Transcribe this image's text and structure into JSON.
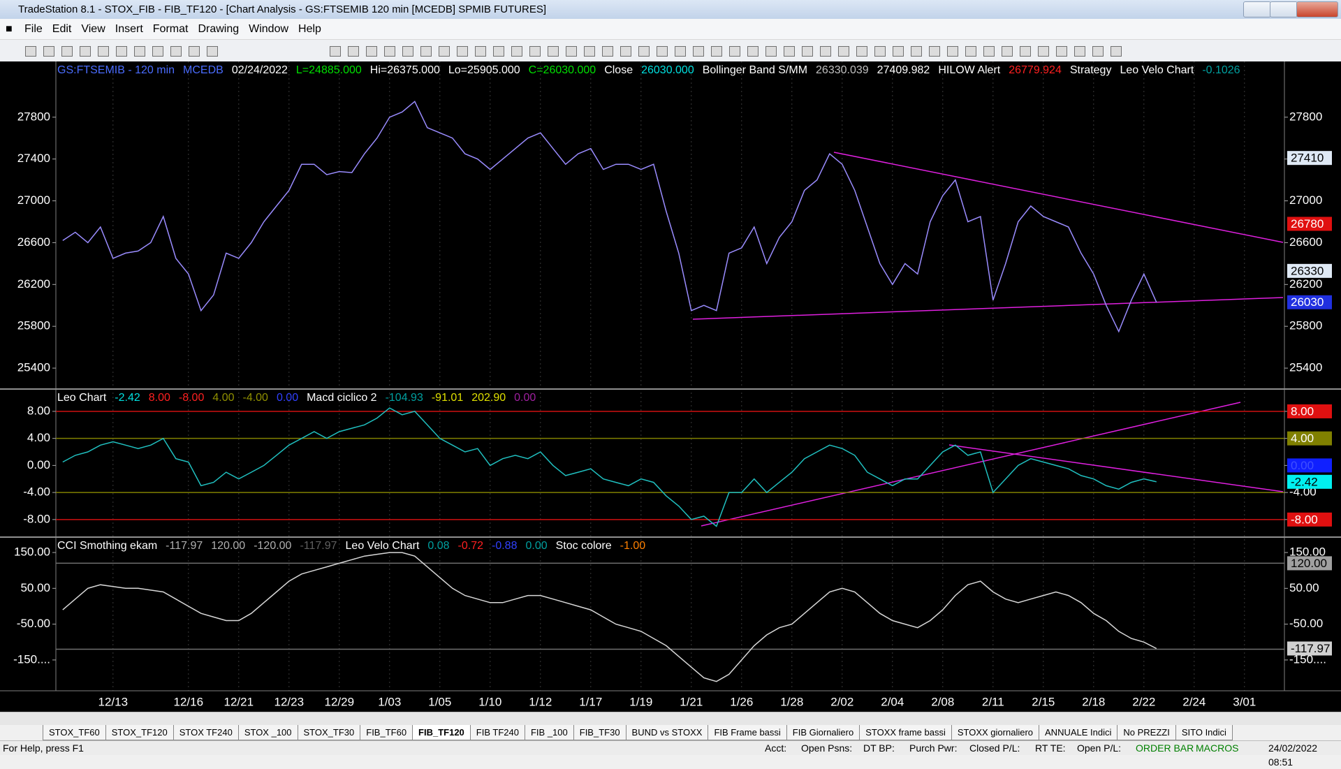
{
  "window": {
    "title": "TradeStation 8.1 - STOX_FIB - FIB_TF120 - [Chart Analysis - GS:FTSEMIB  120 min  [MCEDB] SPMIB FUTURES]",
    "menu": [
      "File",
      "Edit",
      "View",
      "Insert",
      "Format",
      "Drawing",
      "Window",
      "Help"
    ]
  },
  "tabs": [
    "STOX_TF60",
    "STOX_TF120",
    "STOX TF240",
    "STOX _100",
    "STOX_TF30",
    "FIB_TF60",
    "FIB_TF120",
    "FIB TF240",
    "FIB _100",
    "FIB_TF30",
    "BUND vs STOXX",
    "FIB Frame bassi",
    "FIB Giornaliero",
    "STOXX frame bassi",
    "STOXX giornaliero",
    "ANNUALE Indici",
    "No PREZZI",
    "SITO Indici"
  ],
  "active_tab": "FIB_TF120",
  "status": {
    "help": "For Help, press F1",
    "fields": [
      "Acct:",
      "Open Psns:",
      "DT BP:",
      "Purch Pwr:",
      "Closed P/L:",
      "RT TE:",
      "Open P/L:"
    ],
    "order_bar": "ORDER BAR",
    "macros": "MACROS",
    "datetime": "24/02/2022 08:51"
  },
  "chart_data": [
    {
      "type": "line",
      "legend": [
        {
          "text": "GS:FTSEMIB - 120 min",
          "color": "#4a6cff"
        },
        {
          "text": "MCEDB",
          "color": "#4a6cff"
        },
        {
          "text": "02/24/2022",
          "color": "#ffffff"
        },
        {
          "text": "L=24885.000",
          "color": "#00e000"
        },
        {
          "text": "Hi=26375.000",
          "color": "#ffffff"
        },
        {
          "text": "Lo=25905.000",
          "color": "#ffffff"
        },
        {
          "text": "C=26030.000",
          "color": "#00e000"
        },
        {
          "text": "Close",
          "color": "#ffffff"
        },
        {
          "text": "26030.000",
          "color": "#00e0e0"
        },
        {
          "text": "Bollinger Band S/MM",
          "color": "#ffffff"
        },
        {
          "text": "26330.039",
          "color": "#c0c0c0"
        },
        {
          "text": "27409.982",
          "color": "#ffffff"
        },
        {
          "text": "HILOW Alert",
          "color": "#ffffff"
        },
        {
          "text": "26779.924",
          "color": "#ff2020"
        },
        {
          "text": "Strategy",
          "color": "#ffffff"
        },
        {
          "text": "Leo Velo Chart",
          "color": "#ffffff"
        },
        {
          "text": "-0.1026",
          "color": "#00a0a0"
        }
      ],
      "categories": [
        null,
        null,
        null,
        null,
        "12/13",
        null,
        null,
        null,
        null,
        null,
        "12/16",
        null,
        null,
        null,
        "12/21",
        null,
        null,
        null,
        "12/23",
        null,
        null,
        null,
        "12/29",
        null,
        null,
        null,
        "1/03",
        null,
        null,
        null,
        "1/05",
        null,
        null,
        null,
        "1/10",
        null,
        null,
        null,
        "1/12",
        null,
        null,
        null,
        "1/17",
        null,
        null,
        null,
        "1/19",
        null,
        null,
        null,
        "1/21",
        null,
        null,
        null,
        "1/26",
        null,
        null,
        null,
        "1/28",
        null,
        null,
        null,
        "2/02",
        null,
        null,
        null,
        "2/04",
        null,
        null,
        null,
        "2/08",
        null,
        null,
        null,
        "2/11",
        null,
        null,
        null,
        "2/15",
        null,
        null,
        null,
        "2/18",
        null,
        null,
        null,
        "2/22",
        null,
        null,
        null,
        "2/24",
        null,
        null,
        null,
        "3/01",
        null,
        null,
        null
      ],
      "ylim": [
        25200,
        28333
      ],
      "yticks": [
        27800,
        27400,
        27000,
        26600,
        26200,
        25800,
        25400
      ],
      "series": [
        {
          "color": "#9a8cff",
          "values": [
            26620,
            26700,
            26600,
            26750,
            26450,
            26500,
            26520,
            26600,
            26850,
            26450,
            26300,
            25950,
            26100,
            26500,
            26450,
            26600,
            26800,
            26950,
            27100,
            27350,
            27350,
            27250,
            27280,
            27270,
            27450,
            27600,
            27800,
            27850,
            27950,
            27700,
            27650,
            27600,
            27450,
            27400,
            27300,
            27400,
            27500,
            27600,
            27650,
            27500,
            27350,
            27450,
            27500,
            27300,
            27350,
            27350,
            27300,
            27350,
            26900,
            26500,
            25950,
            26000,
            25950,
            26500,
            26550,
            26750,
            26400,
            26650,
            26800,
            27100,
            27200,
            27450,
            27350,
            27100,
            26750,
            26400,
            26200,
            26400,
            26300,
            26800,
            27050,
            27200,
            26800,
            26850,
            26050,
            26400,
            26800,
            26950,
            26850,
            26800,
            26750,
            26500,
            26300,
            26000,
            25750,
            26050,
            26300,
            26030,
            null,
            null,
            null,
            null,
            null,
            null,
            null,
            null,
            null,
            null
          ]
        }
      ],
      "value_boxes": [
        {
          "value": 27410,
          "color": "#dfe9f5",
          "text_color": "#000000"
        },
        {
          "value": 26780,
          "color": "#e01010",
          "text_color": "#ffffff"
        },
        {
          "value": 26330,
          "color": "#dfe9f5",
          "text_color": "#000000"
        },
        {
          "value": 26030,
          "color": "#2030e0",
          "text_color": "#ffffff"
        }
      ]
    },
    {
      "type": "line",
      "legend": [
        {
          "text": "Leo Chart",
          "color": "#ffffff"
        },
        {
          "text": "-2.42",
          "color": "#00e0e0"
        },
        {
          "text": "8.00",
          "color": "#ff2020"
        },
        {
          "text": "-8.00",
          "color": "#ff2020"
        },
        {
          "text": "4.00",
          "color": "#909000"
        },
        {
          "text": "-4.00",
          "color": "#909000"
        },
        {
          "text": "0.00",
          "color": "#3040ff"
        },
        {
          "text": "Macd ciclico 2",
          "color": "#ffffff"
        },
        {
          "text": "-104.93",
          "color": "#00a0a0"
        },
        {
          "text": "-91.01",
          "color": "#e0e000"
        },
        {
          "text": "202.90",
          "color": "#e0e000"
        },
        {
          "text": "0.00",
          "color": "#a020a0"
        }
      ],
      "ylim": [
        -10.6,
        11.3
      ],
      "yticks": [
        {
          "value": 8,
          "label": "8.00"
        },
        {
          "value": 4,
          "label": "4.00"
        },
        {
          "value": 0,
          "label": "0.00"
        },
        {
          "value": -4,
          "label": "-4.00"
        },
        {
          "value": -8,
          "label": "-8.00"
        }
      ],
      "reference_lines": [
        {
          "value": 8,
          "color": "#d01010"
        },
        {
          "value": 4,
          "color": "#808000"
        },
        {
          "value": -4,
          "color": "#808000"
        },
        {
          "value": -8,
          "color": "#d01010"
        }
      ],
      "series": [
        {
          "color": "#20c0c0",
          "values": [
            0.5,
            1.5,
            2,
            3,
            3.5,
            3,
            2.5,
            3,
            4,
            1,
            0.5,
            -3,
            -2.5,
            -1,
            -2,
            -1,
            0,
            1.5,
            3,
            4,
            5,
            4,
            5,
            5.5,
            6,
            7,
            8.5,
            7.5,
            8,
            6,
            4,
            3,
            2,
            2.5,
            0,
            1,
            1.5,
            1,
            2,
            0,
            -1.5,
            -1,
            -0.5,
            -2,
            -2.5,
            -3,
            -2,
            -2.5,
            -4.5,
            -6,
            -8,
            -7.5,
            -9,
            -4,
            -4,
            -2,
            -4,
            -2.5,
            -1,
            1,
            2,
            3,
            2.5,
            1.5,
            -1,
            -2,
            -3,
            -2,
            -2,
            0,
            2,
            3,
            1.5,
            2,
            -4,
            -2,
            0,
            1,
            0.5,
            0,
            -0.5,
            -1.5,
            -2,
            -3,
            -3.5,
            -2.5,
            -2,
            -2.42,
            null,
            null,
            null,
            null,
            null,
            null,
            null,
            null,
            null,
            null
          ]
        }
      ],
      "value_boxes": [
        {
          "value": 8,
          "label": "8.00",
          "color": "#e01010",
          "text_color": "#ffffff"
        },
        {
          "value": 4,
          "label": "4.00",
          "color": "#808000",
          "text_color": "#ffffff"
        },
        {
          "value": 0,
          "label": "0.00",
          "color": "#1020ff",
          "text_color": "#4050ff"
        },
        {
          "value": -2.42,
          "label": "-2.42",
          "color": "#00f0f0",
          "text_color": "#000000"
        },
        {
          "value": -8,
          "label": "-8.00",
          "color": "#e01010",
          "text_color": "#ffffff"
        }
      ]
    },
    {
      "type": "line",
      "legend": [
        {
          "text": "CCI Smothing ekam",
          "color": "#ffffff"
        },
        {
          "text": "-117.97",
          "color": "#b0b0b0"
        },
        {
          "text": "120.00",
          "color": "#b0b0b0"
        },
        {
          "text": "-120.00",
          "color": "#b0b0b0"
        },
        {
          "text": "-117.97",
          "color": "#606060"
        },
        {
          "text": "Leo Velo Chart",
          "color": "#ffffff"
        },
        {
          "text": "0.08",
          "color": "#00a0a0"
        },
        {
          "text": "-0.72",
          "color": "#ff2020"
        },
        {
          "text": "-0.88",
          "color": "#3040ff"
        },
        {
          "text": "0.00",
          "color": "#00a0a0"
        },
        {
          "text": "Stoc colore",
          "color": "#ffffff"
        },
        {
          "text": "-1.00",
          "color": "#ff8000"
        }
      ],
      "ylim": [
        -236,
        193
      ],
      "yticks": [
        {
          "value": 150,
          "label": "150.00"
        },
        {
          "value": 50,
          "label": "50.00"
        },
        {
          "value": -50,
          "label": "-50.00"
        },
        {
          "value": -150,
          "label": "-150...."
        }
      ],
      "reference_lines": [
        {
          "value": 120,
          "color": "#707070"
        },
        {
          "value": -120,
          "color": "#707070"
        }
      ],
      "series": [
        {
          "color": "#d8d8d8",
          "values": [
            -10,
            20,
            50,
            60,
            55,
            50,
            50,
            45,
            40,
            20,
            0,
            -20,
            -30,
            -40,
            -40,
            -20,
            10,
            40,
            70,
            90,
            100,
            110,
            120,
            130,
            140,
            145,
            150,
            150,
            140,
            110,
            80,
            50,
            30,
            20,
            10,
            10,
            20,
            30,
            30,
            20,
            10,
            0,
            -10,
            -30,
            -50,
            -60,
            -70,
            -90,
            -110,
            -140,
            -170,
            -200,
            -210,
            -190,
            -150,
            -110,
            -80,
            -60,
            -50,
            -20,
            10,
            40,
            50,
            40,
            10,
            -20,
            -40,
            -50,
            -60,
            -40,
            -10,
            30,
            60,
            70,
            40,
            20,
            10,
            20,
            30,
            40,
            30,
            10,
            -20,
            -40,
            -70,
            -90,
            -100,
            -117.97,
            null,
            null,
            null,
            null,
            null,
            null,
            null,
            null,
            null,
            null
          ]
        }
      ],
      "value_boxes": [
        {
          "value": 120,
          "label": "120.00",
          "color": "#a0a0a0",
          "text_color": "#000000"
        },
        {
          "value": -117.97,
          "label": "-117.97",
          "color": "#d0d0d0",
          "text_color": "#000000"
        }
      ]
    }
  ]
}
